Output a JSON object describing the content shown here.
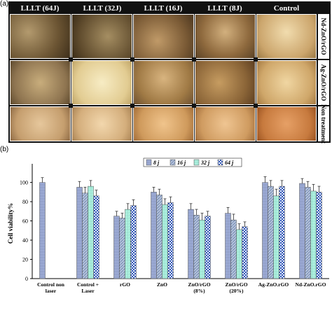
{
  "panel_a": {
    "label": "(a)",
    "columns": [
      "LLLT (64J)",
      "LLLT (32J)",
      "LLLT (16J)",
      "LLLT (8J)",
      "Control"
    ],
    "rows": [
      "Nd-ZnO/rGO",
      "Ag-ZnO/rGO",
      "Non treatment"
    ]
  },
  "panel_b": {
    "label": "(b)"
  },
  "chart_data": {
    "type": "bar",
    "ylabel": "Cell viability%",
    "xlabel": "",
    "ylim": [
      0,
      115
    ],
    "yticks": [
      0,
      20,
      40,
      60,
      80,
      100
    ],
    "categories": [
      "Control non laser",
      "Control + Laser",
      "rGO",
      "ZnO",
      "ZnO/rGO (8%)",
      "ZnO/rGO (20%)",
      "Ag-ZnO.rGO",
      "Nd-ZnO.rGO"
    ],
    "series": [
      {
        "name": "8 j",
        "values": [
          100,
          95,
          65,
          90,
          72,
          68,
          100,
          99
        ],
        "errors": [
          5,
          6,
          5,
          5,
          6,
          6,
          6,
          5
        ]
      },
      {
        "name": "16 j",
        "values": [
          null,
          89,
          63,
          87,
          66,
          61,
          96,
          95
        ],
        "errors": [
          null,
          6,
          5,
          6,
          6,
          6,
          6,
          6
        ]
      },
      {
        "name": "32 j",
        "values": [
          null,
          96,
          72,
          77,
          61,
          51,
          86,
          91
        ],
        "errors": [
          null,
          6,
          6,
          6,
          7,
          6,
          7,
          7
        ]
      },
      {
        "name": "64 j",
        "values": [
          null,
          86,
          76,
          79,
          65,
          54,
          96,
          90
        ],
        "errors": [
          null,
          6,
          6,
          6,
          5,
          5,
          6,
          6
        ]
      }
    ],
    "legend_position": "top-center",
    "colors": {
      "8 j": "#9aa8d2",
      "16 j": "#a9b8cf",
      "32 j": "#a7ead9",
      "64 j": "#2f54b5"
    }
  }
}
